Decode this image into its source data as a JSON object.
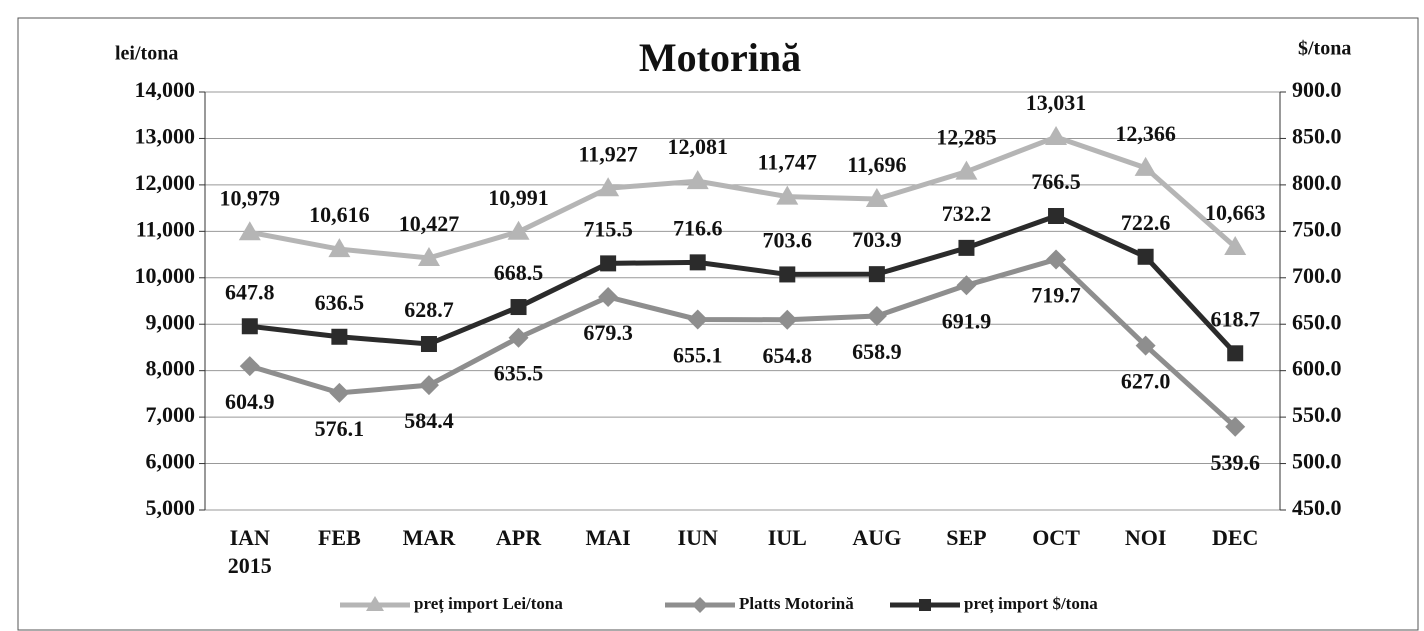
{
  "chart_data": {
    "type": "line",
    "title": "Motorină",
    "ylabel": "lei/tona",
    "y2label": "$/tona",
    "categories": [
      "IAN",
      "FEB",
      "MAR",
      "APR",
      "MAI",
      "IUN",
      "IUL",
      "AUG",
      "SEP",
      "OCT",
      "NOI",
      "DEC"
    ],
    "year_label": "2015",
    "ylim": [
      5000,
      14000
    ],
    "yticks": [
      {
        "value": 5000,
        "label": "5,000"
      },
      {
        "value": 6000,
        "label": "6,000"
      },
      {
        "value": 7000,
        "label": "7,000"
      },
      {
        "value": 8000,
        "label": "8,000"
      },
      {
        "value": 9000,
        "label": "9,000"
      },
      {
        "value": 10000,
        "label": "10,000"
      },
      {
        "value": 11000,
        "label": "11,000"
      },
      {
        "value": 12000,
        "label": "12,000"
      },
      {
        "value": 13000,
        "label": "13,000"
      },
      {
        "value": 14000,
        "label": "14,000"
      }
    ],
    "y2lim": [
      450,
      900
    ],
    "y2ticks": [
      {
        "value": 450,
        "label": "450.0"
      },
      {
        "value": 500,
        "label": "500.0"
      },
      {
        "value": 550,
        "label": "550.0"
      },
      {
        "value": 600,
        "label": "600.0"
      },
      {
        "value": 650,
        "label": "650.0"
      },
      {
        "value": 700,
        "label": "700.0"
      },
      {
        "value": 750,
        "label": "750.0"
      },
      {
        "value": 800,
        "label": "800.0"
      },
      {
        "value": 850,
        "label": "850.0"
      },
      {
        "value": 900,
        "label": "900.0"
      }
    ],
    "grid": true,
    "legend": "bottom",
    "series": [
      {
        "name": "preț import Lei/tona",
        "color": "#b5b5b5",
        "marker": "triangle",
        "axis": "y",
        "values": [
          10979,
          10616,
          10427,
          10991,
          11927,
          12081,
          11747,
          11696,
          12285,
          13031,
          12366,
          10663
        ],
        "value_labels": [
          "10,979",
          "10,616",
          "10,427",
          "10,991",
          "11,927",
          "12,081",
          "11,747",
          "11,696",
          "12,285",
          "13,031",
          "12,366",
          "10,663"
        ]
      },
      {
        "name": "Platts Motorină",
        "color": "#8e8e8e",
        "marker": "diamond",
        "axis": "y2",
        "values": [
          604.9,
          576.1,
          584.4,
          635.5,
          679.3,
          655.1,
          654.8,
          658.9,
          691.9,
          719.7,
          627.0,
          539.6
        ],
        "value_labels": [
          "604.9",
          "576.1",
          "584.4",
          "635.5",
          "679.3",
          "655.1",
          "654.8",
          "658.9",
          "691.9",
          "719.7",
          "627.0",
          "539.6"
        ]
      },
      {
        "name": "preț import $/tona",
        "color": "#2b2b2b",
        "marker": "square",
        "axis": "y2",
        "values": [
          647.8,
          636.5,
          628.7,
          668.5,
          715.5,
          716.6,
          703.6,
          703.9,
          732.2,
          766.5,
          722.6,
          618.7
        ],
        "value_labels": [
          "647.8",
          "636.5",
          "628.7",
          "668.5",
          "715.5",
          "716.6",
          "703.6",
          "703.9",
          "732.2",
          "766.5",
          "722.6",
          "618.7"
        ]
      }
    ]
  }
}
